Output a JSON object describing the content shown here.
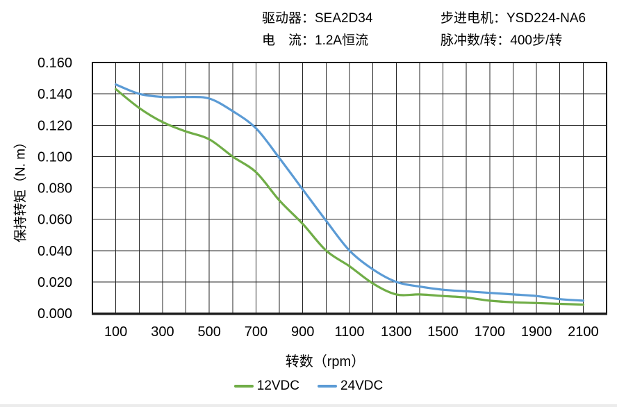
{
  "header": {
    "driver": "驱动器：SEA2D34",
    "current": "电　流：1.2A恒流",
    "motor": "步进电机：YSD224-NA6",
    "pulses": "脉冲数/转：400步/转"
  },
  "chart_data": {
    "type": "line",
    "title": "",
    "xlabel": "转数（rpm）",
    "ylabel": "保持转矩（N. m）",
    "xlim": [
      0,
      2200
    ],
    "ylim": [
      0,
      0.16
    ],
    "grid": true,
    "x_grid_step": 100,
    "y_grid_step": 0.02,
    "legend_position": "bottom-center",
    "x_tick_values": [
      100,
      300,
      500,
      700,
      900,
      1100,
      1300,
      1500,
      1700,
      1900,
      2100
    ],
    "y_tick_labels": [
      "0.000",
      "0.020",
      "0.040",
      "0.060",
      "0.080",
      "0.100",
      "0.120",
      "0.140",
      "0.160"
    ],
    "x": [
      100,
      200,
      300,
      400,
      500,
      600,
      700,
      800,
      900,
      1000,
      1100,
      1200,
      1300,
      1400,
      1500,
      1600,
      1700,
      1800,
      1900,
      2000,
      2100
    ],
    "series": [
      {
        "name": "12VDC",
        "color": "#70AD47",
        "values": [
          0.143,
          0.131,
          0.122,
          0.116,
          0.111,
          0.1,
          0.09,
          0.072,
          0.057,
          0.04,
          0.03,
          0.019,
          0.012,
          0.012,
          0.011,
          0.01,
          0.008,
          0.007,
          0.0065,
          0.006,
          0.0055
        ]
      },
      {
        "name": "24VDC",
        "color": "#5B9BD5",
        "values": [
          0.146,
          0.14,
          0.138,
          0.138,
          0.137,
          0.129,
          0.118,
          0.099,
          0.079,
          0.059,
          0.04,
          0.028,
          0.02,
          0.017,
          0.015,
          0.014,
          0.013,
          0.012,
          0.011,
          0.009,
          0.008
        ]
      }
    ],
    "colors": {
      "grid": "#262626",
      "border": "#1a1a1a",
      "axis": "#1a1a1a",
      "text": "#000000"
    }
  }
}
